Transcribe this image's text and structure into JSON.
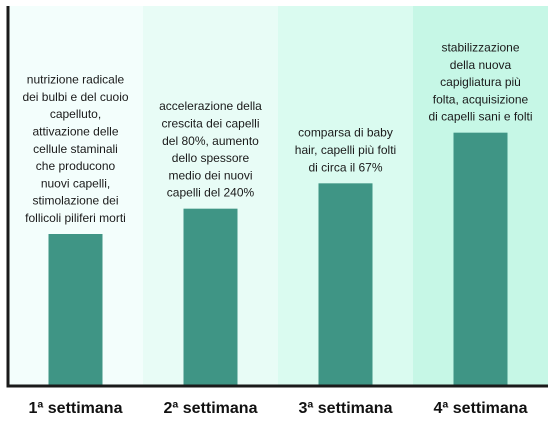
{
  "chart_data": {
    "type": "bar",
    "categories": [
      "1ª settimana",
      "2ª settimana",
      "3ª settimana",
      "4ª settimana"
    ],
    "values": [
      150,
      175,
      200,
      250
    ],
    "ylim": [
      0,
      375
    ],
    "grid": false,
    "legend": "none",
    "descriptions": [
      [
        "nutrizione radicale",
        "dei bulbi e del cuoio",
        "capelluto,",
        "attivazione delle",
        "cellule staminali",
        "che producono",
        "nuovi capelli,",
        "stimolazione dei",
        "follicoli piliferi morti"
      ],
      [
        "accelerazione della",
        "crescita dei capelli",
        "del 80%, aumento",
        "dello spessore",
        "medio dei nuovi",
        "capelli del 240%"
      ],
      [
        "comparsa di baby",
        "hair, capelli più folti",
        "di circa il 67%"
      ],
      [
        "stabilizzazione",
        "della nuova",
        "capigliatura più",
        "folta, acquisizione",
        "di capelli sani e folti"
      ]
    ],
    "colors": {
      "bar": "#3f9585",
      "panels": [
        "#f3fefc",
        "#e8fcf6",
        "#dafbf0",
        "#c6f7e6"
      ],
      "axis": "#1a1a1a"
    }
  }
}
